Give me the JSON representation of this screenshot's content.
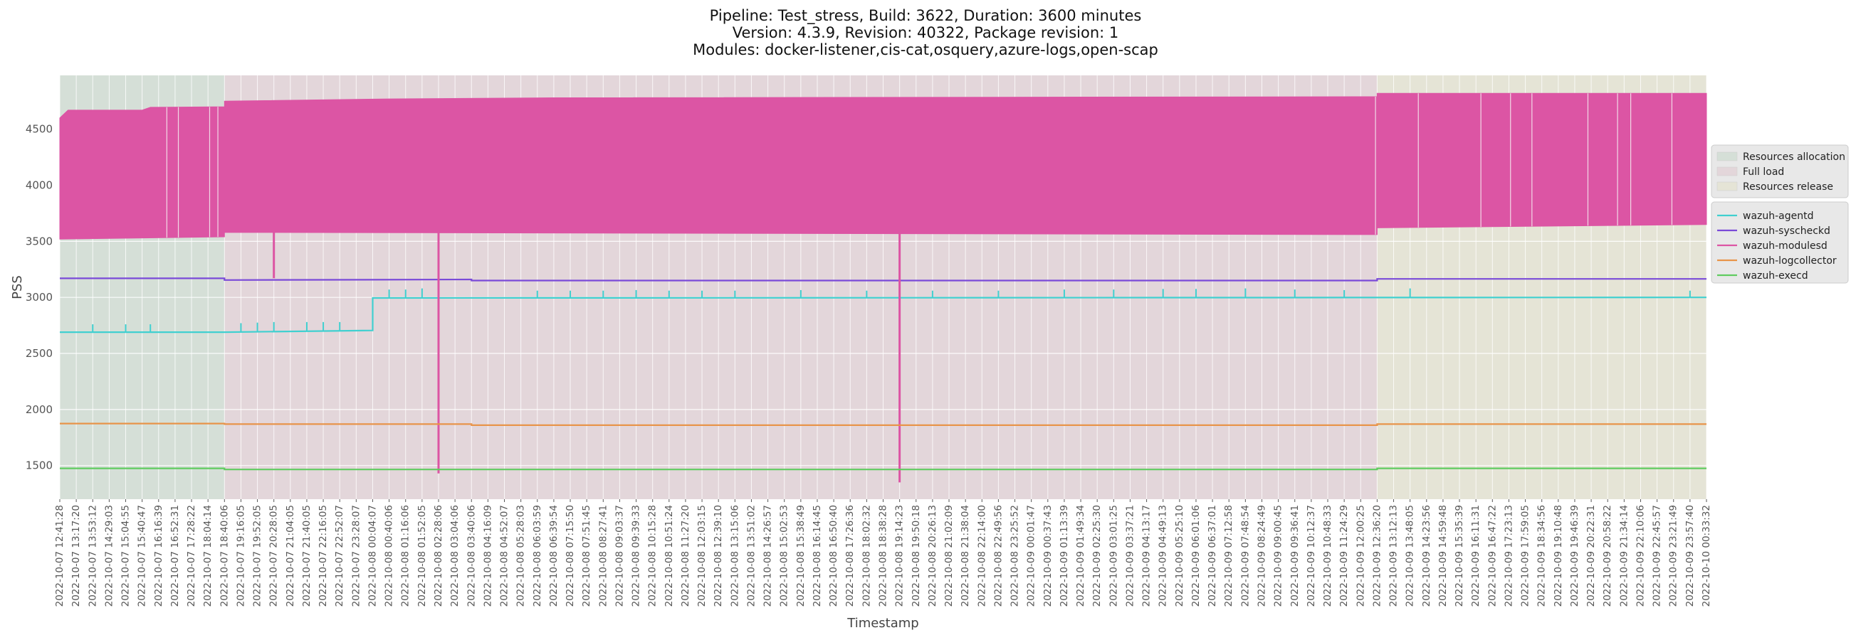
{
  "chart_data": {
    "type": "line",
    "title_lines": [
      "Pipeline: Test_stress, Build: 3622, Duration: 3600 minutes",
      "Version: 4.3.9, Revision: 40322, Package revision: 1",
      "Modules: docker-listener,cis-cat,osquery,azure-logs,open-scap"
    ],
    "xlabel": "Timestamp",
    "ylabel": "PSS",
    "ylim": [
      1200,
      4980
    ],
    "yticks": [
      1500,
      2000,
      2500,
      3000,
      3500,
      4000,
      4500
    ],
    "grid": true,
    "legend_position": "right",
    "x_tick_labels": [
      "2022-10-07 12:41:28",
      "2022-10-07 13:17:20",
      "2022-10-07 13:53:12",
      "2022-10-07 14:29:03",
      "2022-10-07 15:04:55",
      "2022-10-07 15:40:47",
      "2022-10-07 16:16:39",
      "2022-10-07 16:52:31",
      "2022-10-07 17:28:22",
      "2022-10-07 18:04:14",
      "2022-10-07 18:40:06",
      "2022-10-07 19:16:05",
      "2022-10-07 19:52:05",
      "2022-10-07 20:28:05",
      "2022-10-07 21:04:05",
      "2022-10-07 21:40:05",
      "2022-10-07 22:16:05",
      "2022-10-07 22:52:07",
      "2022-10-07 23:28:07",
      "2022-10-08 00:04:07",
      "2022-10-08 00:40:06",
      "2022-10-08 01:16:06",
      "2022-10-08 01:52:05",
      "2022-10-08 02:28:06",
      "2022-10-08 03:04:06",
      "2022-10-08 03:40:06",
      "2022-10-08 04:16:09",
      "2022-10-08 04:52:07",
      "2022-10-08 05:28:03",
      "2022-10-08 06:03:59",
      "2022-10-08 06:39:54",
      "2022-10-08 07:15:50",
      "2022-10-08 07:51:45",
      "2022-10-08 08:27:41",
      "2022-10-08 09:03:37",
      "2022-10-08 09:39:33",
      "2022-10-08 10:15:28",
      "2022-10-08 10:51:24",
      "2022-10-08 11:27:20",
      "2022-10-08 12:03:15",
      "2022-10-08 12:39:10",
      "2022-10-08 13:15:06",
      "2022-10-08 13:51:02",
      "2022-10-08 14:26:57",
      "2022-10-08 15:02:53",
      "2022-10-08 15:38:49",
      "2022-10-08 16:14:45",
      "2022-10-08 16:50:40",
      "2022-10-08 17:26:36",
      "2022-10-08 18:02:32",
      "2022-10-08 18:38:28",
      "2022-10-08 19:14:23",
      "2022-10-08 19:50:18",
      "2022-10-08 20:26:13",
      "2022-10-08 21:02:09",
      "2022-10-08 21:38:04",
      "2022-10-08 22:14:00",
      "2022-10-08 22:49:56",
      "2022-10-08 23:25:52",
      "2022-10-09 00:01:47",
      "2022-10-09 00:37:43",
      "2022-10-09 01:13:39",
      "2022-10-09 01:49:34",
      "2022-10-09 02:25:30",
      "2022-10-09 03:01:25",
      "2022-10-09 03:37:21",
      "2022-10-09 04:13:17",
      "2022-10-09 04:49:13",
      "2022-10-09 05:25:10",
      "2022-10-09 06:01:06",
      "2022-10-09 06:37:01",
      "2022-10-09 07:12:58",
      "2022-10-09 07:48:54",
      "2022-10-09 08:24:49",
      "2022-10-09 09:00:45",
      "2022-10-09 09:36:41",
      "2022-10-09 10:12:37",
      "2022-10-09 10:48:33",
      "2022-10-09 11:24:29",
      "2022-10-09 12:00:25",
      "2022-10-09 12:36:20",
      "2022-10-09 13:12:13",
      "2022-10-09 13:48:05",
      "2022-10-09 14:23:56",
      "2022-10-09 14:59:48",
      "2022-10-09 15:35:39",
      "2022-10-09 16:11:31",
      "2022-10-09 16:47:22",
      "2022-10-09 17:23:13",
      "2022-10-09 17:59:05",
      "2022-10-09 18:34:56",
      "2022-10-09 19:10:48",
      "2022-10-09 19:46:39",
      "2022-10-09 20:22:31",
      "2022-10-09 20:58:22",
      "2022-10-09 21:34:14",
      "2022-10-09 22:10:06",
      "2022-10-09 22:45:57",
      "2022-10-09 23:21:49",
      "2022-10-09 23:57:40",
      "2022-10-10 00:33:32"
    ],
    "phases": [
      {
        "name": "Resources allocation",
        "start_index": 0,
        "end_index": 10,
        "color": "#d5dfd7"
      },
      {
        "name": "Full load",
        "start_index": 10,
        "end_index": 80,
        "color": "#e3d6da"
      },
      {
        "name": "Resources release",
        "start_index": 80,
        "end_index": 100,
        "color": "#e5e4d6"
      }
    ],
    "series": [
      {
        "name": "wazuh-agentd",
        "color": "#40d0d0",
        "points": [
          [
            0,
            2690
          ],
          [
            10,
            2690
          ],
          [
            19,
            2705
          ],
          [
            19,
            2995
          ],
          [
            100,
            3000
          ]
        ],
        "spikes": [
          [
            2,
            2760
          ],
          [
            4,
            2760
          ],
          [
            5.5,
            2760
          ],
          [
            11,
            2770
          ],
          [
            12,
            2775
          ],
          [
            13,
            2780
          ],
          [
            15,
            2780
          ],
          [
            16,
            2780
          ],
          [
            17,
            2780
          ],
          [
            20,
            3070
          ],
          [
            21,
            3070
          ],
          [
            22,
            3080
          ],
          [
            23,
            3085
          ],
          [
            29,
            3060
          ],
          [
            31,
            3060
          ],
          [
            33,
            3060
          ],
          [
            35,
            3065
          ],
          [
            37,
            3060
          ],
          [
            39,
            3060
          ],
          [
            41,
            3060
          ],
          [
            45,
            3065
          ],
          [
            49,
            3060
          ],
          [
            51,
            3065
          ],
          [
            53,
            3060
          ],
          [
            57,
            3060
          ],
          [
            61,
            3070
          ],
          [
            64,
            3070
          ],
          [
            67,
            3075
          ],
          [
            69,
            3075
          ],
          [
            72,
            3080
          ],
          [
            75,
            3070
          ],
          [
            78,
            3065
          ],
          [
            82,
            3080
          ],
          [
            99,
            3060
          ]
        ]
      },
      {
        "name": "wazuh-syscheckd",
        "color": "#7a4ad8",
        "points": [
          [
            0,
            3170
          ],
          [
            10,
            3170
          ],
          [
            10,
            3155
          ],
          [
            25,
            3160
          ],
          [
            25,
            3150
          ],
          [
            80,
            3150
          ],
          [
            80,
            3165
          ],
          [
            100,
            3165
          ]
        ],
        "spikes": []
      },
      {
        "name": "wazuh-modulesd",
        "color": "#dc55a4",
        "band": true,
        "upper": [
          [
            0,
            4600
          ],
          [
            0.5,
            4670
          ],
          [
            5,
            4670
          ],
          [
            5.5,
            4695
          ],
          [
            10,
            4700
          ],
          [
            10,
            4750
          ],
          [
            20,
            4770
          ],
          [
            30,
            4780
          ],
          [
            80,
            4790
          ],
          [
            80,
            4820
          ],
          [
            100,
            4820
          ]
        ],
        "lower": [
          [
            0,
            3520
          ],
          [
            10,
            3540
          ],
          [
            10,
            3580
          ],
          [
            80,
            3560
          ],
          [
            80,
            3620
          ],
          [
            100,
            3650
          ]
        ],
        "spikes_down": [
          [
            13,
            3170
          ],
          [
            23,
            1430
          ],
          [
            51,
            1350
          ]
        ]
      },
      {
        "name": "wazuh-logcollector",
        "color": "#e8944a",
        "points": [
          [
            0,
            1875
          ],
          [
            10,
            1875
          ],
          [
            10,
            1870
          ],
          [
            25,
            1870
          ],
          [
            25,
            1860
          ],
          [
            80,
            1860
          ],
          [
            80,
            1870
          ],
          [
            100,
            1870
          ]
        ],
        "spikes": []
      },
      {
        "name": "wazuh-execd",
        "color": "#60cc60",
        "points": [
          [
            0,
            1475
          ],
          [
            10,
            1475
          ],
          [
            10,
            1465
          ],
          [
            80,
            1465
          ],
          [
            80,
            1475
          ],
          [
            100,
            1475
          ]
        ],
        "spikes": []
      }
    ]
  }
}
